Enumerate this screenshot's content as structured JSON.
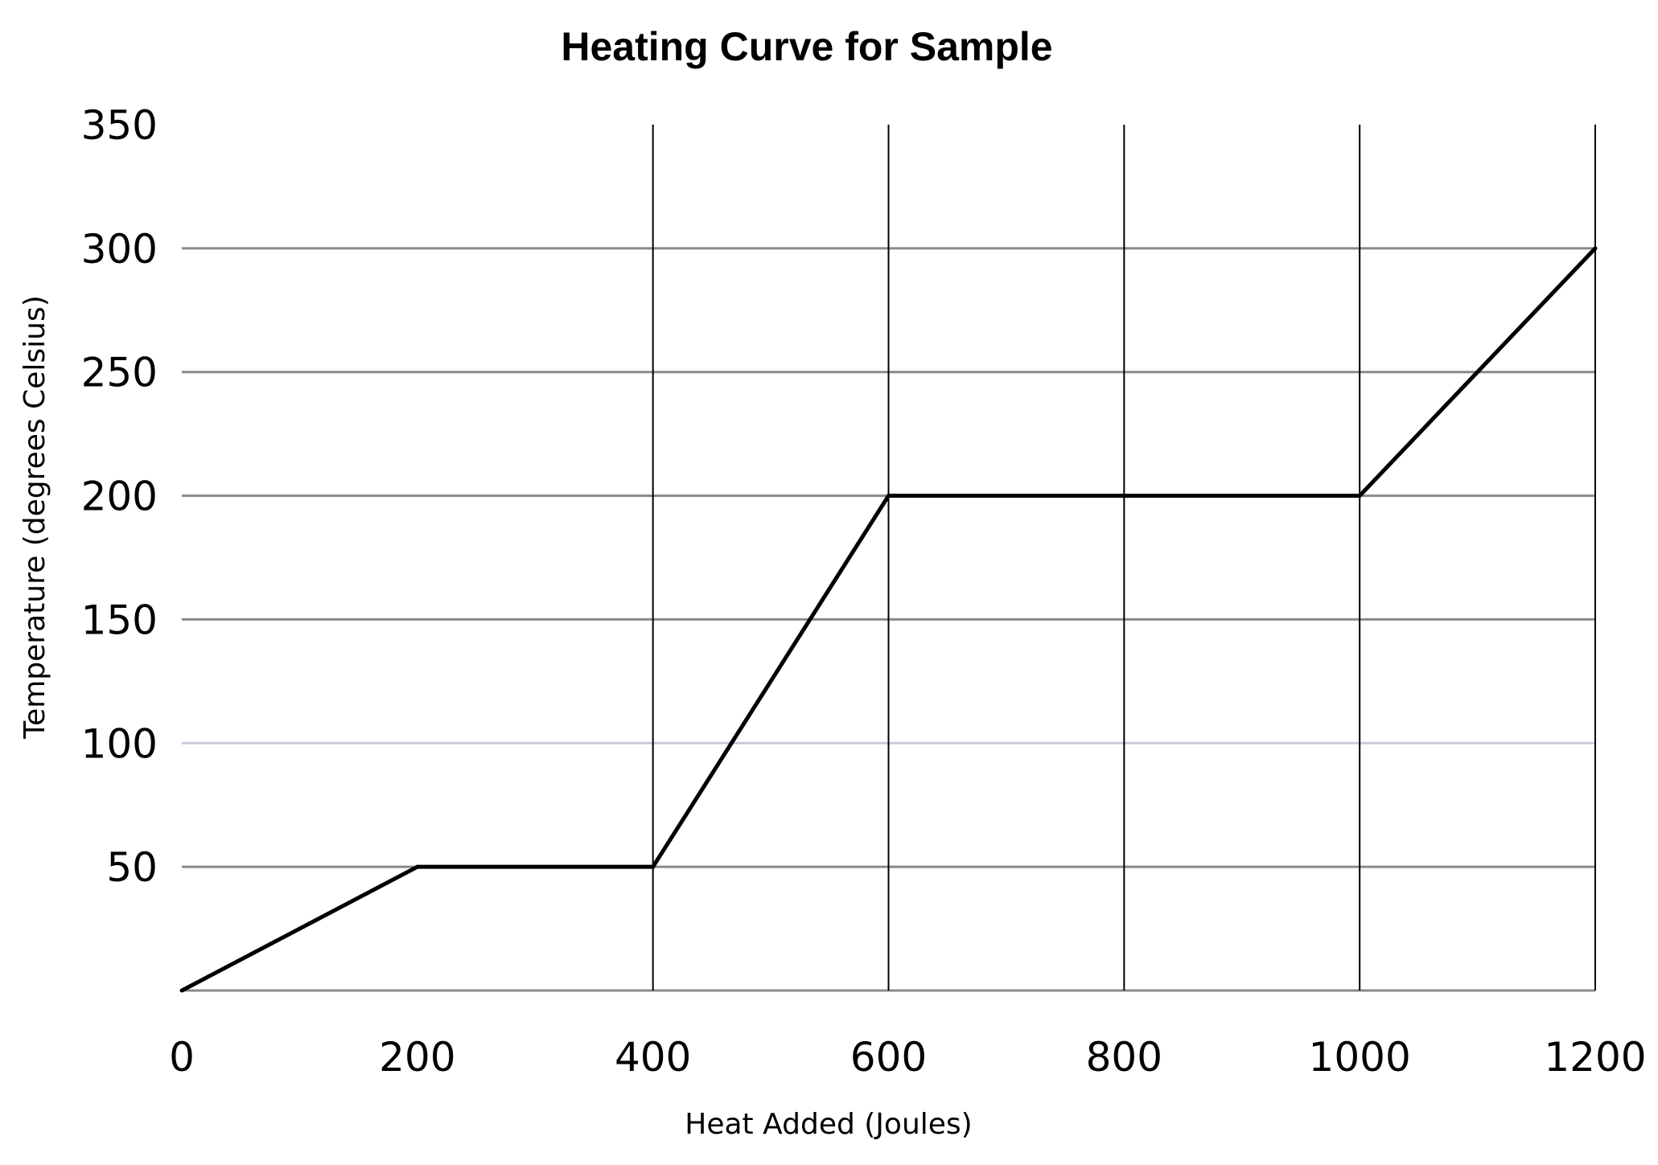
{
  "chart_data": {
    "type": "line",
    "title": "Heating Curve for Sample",
    "xlabel": "Heat Added (Joules)",
    "ylabel": "Temperature (degrees Celsius)",
    "xlim": [
      0,
      1200
    ],
    "ylim": [
      0,
      350
    ],
    "x_ticks": [
      0,
      200,
      400,
      600,
      800,
      1000,
      1200
    ],
    "y_ticks": [
      50,
      100,
      150,
      200,
      250,
      300,
      350
    ],
    "vertical_gridlines_at": [
      400,
      600,
      800,
      1000,
      1200
    ],
    "horizontal_gridlines": true,
    "series": [
      {
        "x": [
          0,
          200,
          400,
          600,
          1000,
          1200
        ],
        "y": [
          0,
          50,
          50,
          200,
          200,
          300
        ]
      }
    ],
    "colors": {
      "line": "#000000",
      "hgrid": "#8a8a8a",
      "hgrid_light": "#c8c8d8",
      "vgrid": "#000000"
    }
  }
}
